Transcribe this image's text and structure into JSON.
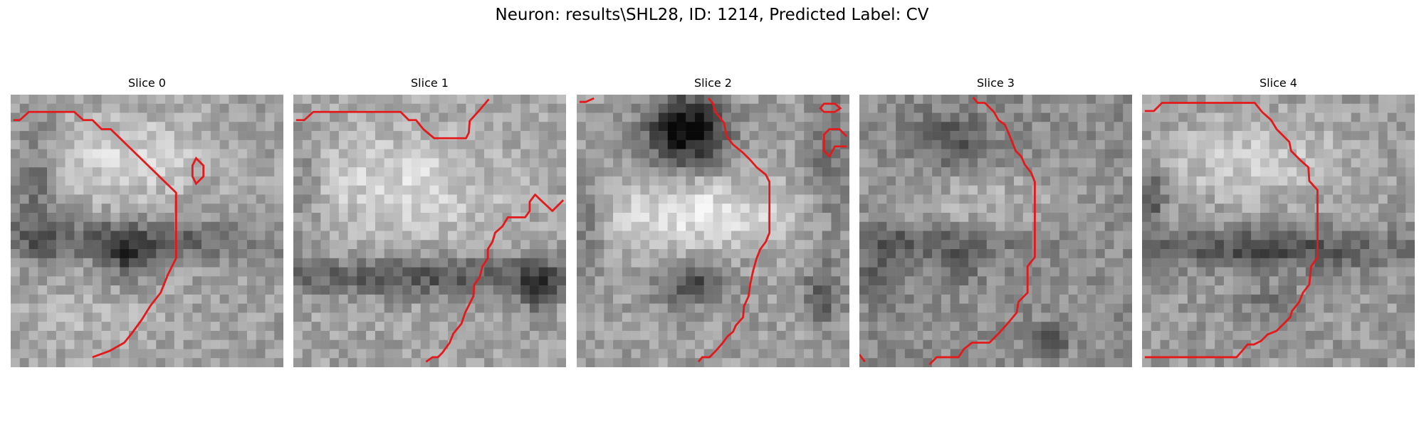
{
  "figure": {
    "title": "Neuron: results\\SHL28, ID: 1214, Predicted Label: CV"
  },
  "panels": [
    {
      "title": "Slice 0"
    },
    {
      "title": "Slice 1"
    },
    {
      "title": "Slice 2"
    },
    {
      "title": "Slice 3"
    },
    {
      "title": "Slice 4"
    }
  ],
  "colors": {
    "contour": "#e31a1c",
    "background": "#ffffff"
  },
  "image_grid": 30
}
